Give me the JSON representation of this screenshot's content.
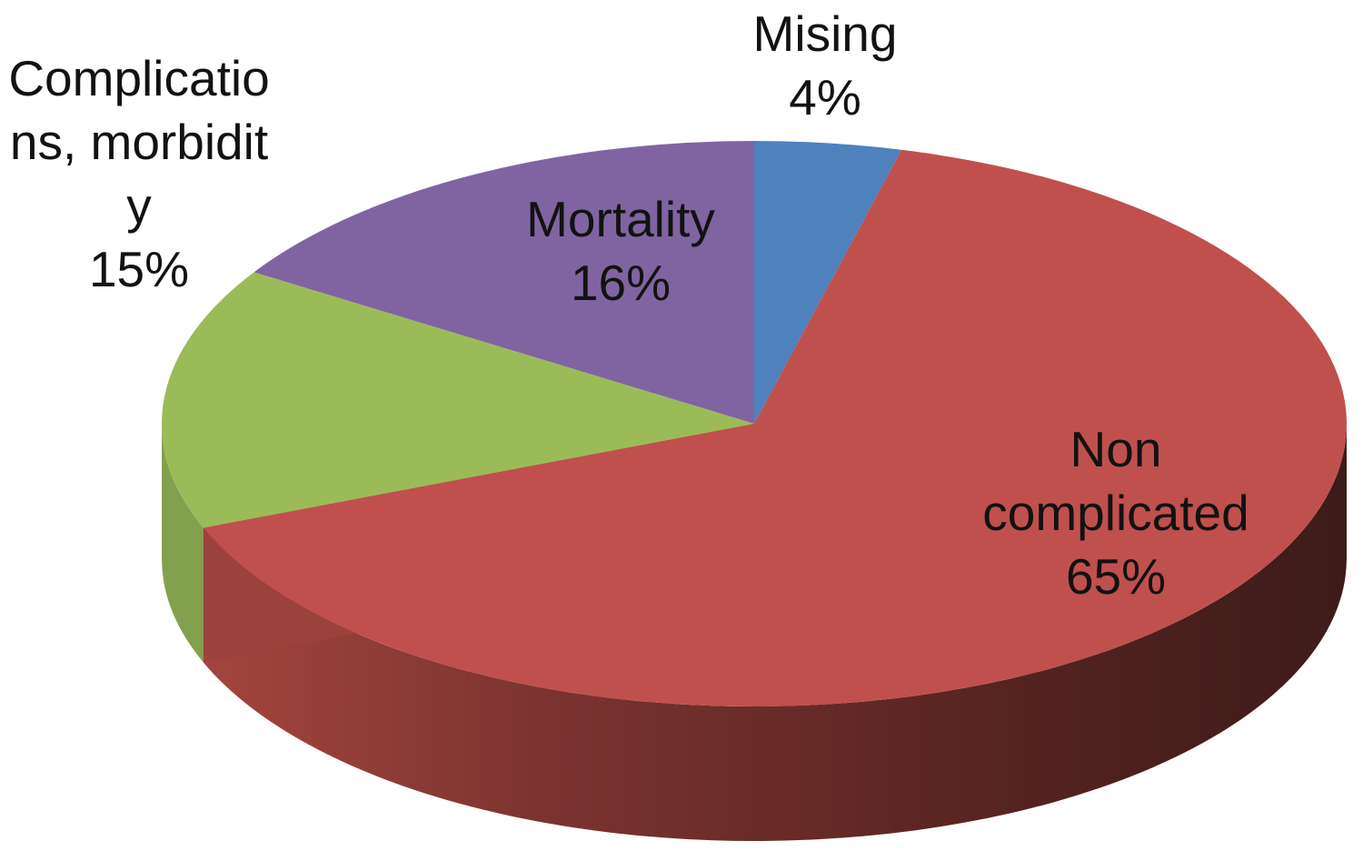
{
  "page": {
    "background_color": "#ffffff",
    "title": ""
  },
  "chart_data": {
    "type": "pie",
    "effect": "3d-extruded",
    "title": "",
    "legend": "none",
    "start_angle_deg": 0,
    "direction": "clockwise",
    "categories": [
      "Mising",
      "Non complicated",
      "Complications, morbidity",
      "Mortality"
    ],
    "values": [
      4,
      65,
      15,
      16
    ],
    "unit": "%",
    "label_text_color": "#121212",
    "slices": [
      {
        "name": "Mising",
        "value": 4,
        "pct_label": "4%",
        "color": "#4F81BD",
        "side_color": "#35597F",
        "label_lines": [
          "Mising",
          "4%"
        ],
        "label_position": "outside-top"
      },
      {
        "name": "Non complicated",
        "value": 65,
        "pct_label": "65%",
        "color": "#C0504D",
        "side_color": "#6B2D2A",
        "cut_face_color": "#9C423D",
        "side_gradient": [
          "#A8473F",
          "#7B3330",
          "#572421",
          "#3D1B1A"
        ],
        "label_lines": [
          "Non",
          "complicated",
          "65%"
        ],
        "label_position": "inside-right"
      },
      {
        "name": "Complications, morbidity",
        "value": 15,
        "pct_label": "15%",
        "color": "#9BBB59",
        "side_color": "#83A04F",
        "label_lines": [
          "Complicatio",
          "ns, morbidit",
          "y",
          "15%"
        ],
        "label_position": "outside-left"
      },
      {
        "name": "Mortality",
        "value": 16,
        "pct_label": "16%",
        "color": "#8064A2",
        "side_color": "#594674",
        "label_lines": [
          "Mortality",
          "16%"
        ],
        "label_position": "inside-top"
      }
    ]
  }
}
